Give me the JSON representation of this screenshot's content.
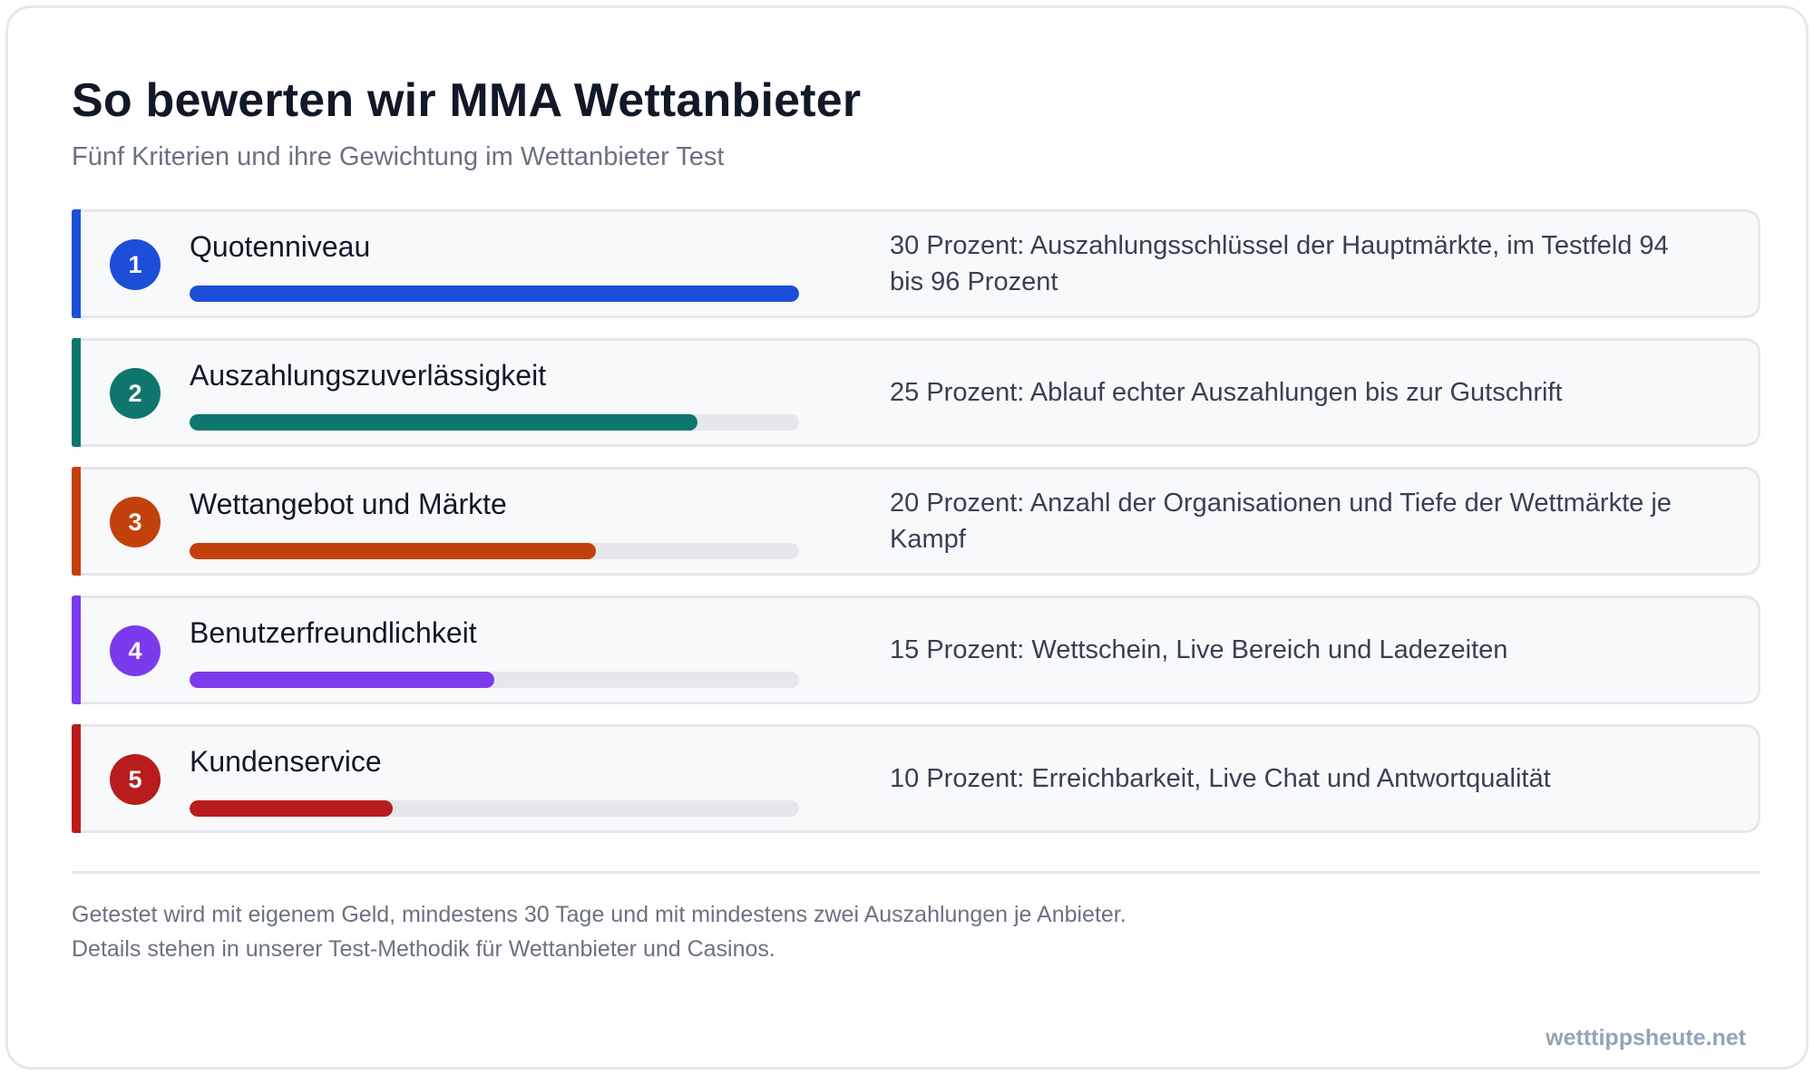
{
  "header": {
    "title": "So bewerten wir MMA Wettanbieter",
    "subtitle": "Fünf Kriterien und ihre Gewichtung im Wettanbieter Test"
  },
  "criteria": [
    {
      "number": "1",
      "name": "Quotenniveau",
      "weight_percent": 30,
      "description": "30 Prozent: Auszahlungsschlüssel der Hauptmärkte, im Testfeld 94 bis 96 Prozent",
      "color": "#1d4ed8"
    },
    {
      "number": "2",
      "name": "Auszahlungszuverlässigkeit",
      "weight_percent": 25,
      "description": "25 Prozent: Ablauf echter Auszahlungen bis zur Gutschrift",
      "color": "#0f766e"
    },
    {
      "number": "3",
      "name": "Wettangebot und Märkte",
      "weight_percent": 20,
      "description": "20 Prozent: Anzahl der Organisationen und Tiefe der Wettmärkte je Kampf",
      "color": "#c2410c"
    },
    {
      "number": "4",
      "name": "Benutzerfreundlichkeit",
      "weight_percent": 15,
      "description": "15 Prozent: Wettschein, Live Bereich und Ladezeiten",
      "color": "#7c3aed"
    },
    {
      "number": "5",
      "name": "Kundenservice",
      "weight_percent": 10,
      "description": "10 Prozent: Erreichbarkeit, Live Chat und Antwortqualität",
      "color": "#b91c1c"
    }
  ],
  "footer": {
    "line1": "Getestet wird mit eigenem Geld, mindestens 30 Tage und mit mindestens zwei Auszahlungen je Anbieter.",
    "line2": "Details stehen in unserer Test-Methodik für Wettanbieter und Casinos.",
    "brand": "wetttippsheute.net"
  }
}
